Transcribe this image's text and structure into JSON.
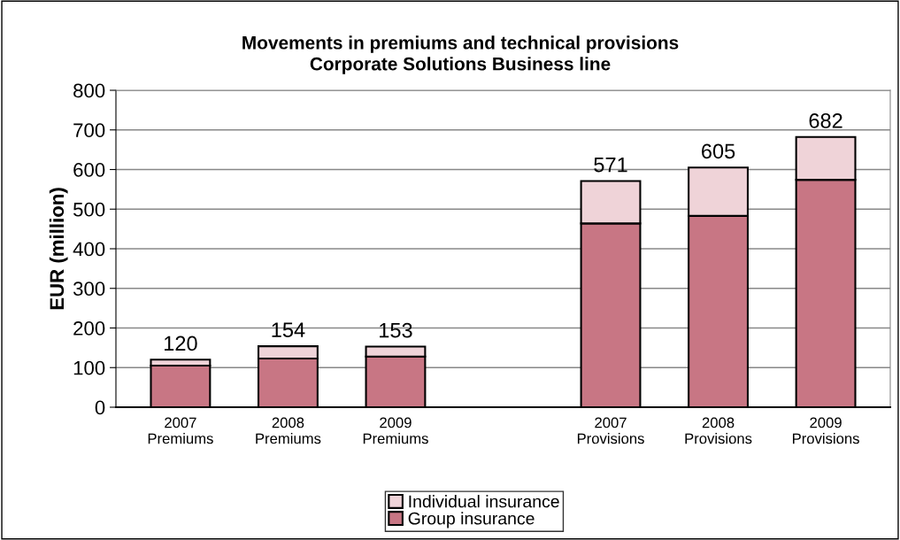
{
  "chart_data": {
    "type": "bar",
    "title": "Movements in premiums and technical provisions\nCorporate Solutions Business line",
    "ylabel": "EUR (million)",
    "categories": [
      "2007\nPremiums",
      "2008\nPremiums",
      "2009\nPremiums",
      null,
      "2007\nProvisions",
      "2008\nProvisions",
      "2009\nProvisions"
    ],
    "stacked": true,
    "series": [
      {
        "name": "Group insurance",
        "color": "#c87684",
        "values": [
          105,
          123,
          128,
          null,
          464,
          483,
          574
        ]
      },
      {
        "name": "Individual insurance",
        "color": "#efd3d8",
        "values": [
          15,
          31,
          25,
          null,
          107,
          122,
          108
        ]
      }
    ],
    "totals": [
      "120",
      "154",
      "153",
      null,
      "571",
      "605",
      "682"
    ],
    "ylim": [
      0,
      800
    ],
    "yticks": [
      0,
      100,
      200,
      300,
      400,
      500,
      600,
      700,
      800
    ],
    "grid": "y",
    "legend": "bottom"
  }
}
